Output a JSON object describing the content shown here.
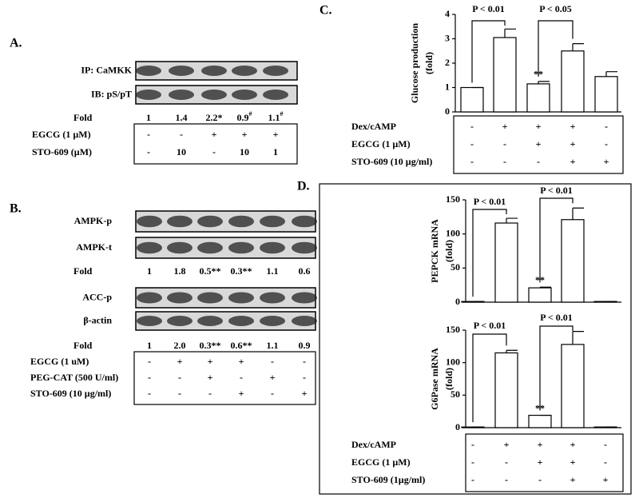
{
  "panel_a": {
    "label": "A.",
    "blots": [
      "IP: CaMKK",
      "IB: pS/pT"
    ],
    "fold_label": "Fold",
    "folds": [
      "1",
      "1.4",
      "2.2*",
      {
        "text": "0.9",
        "sup": "#"
      },
      {
        "text": "1.1",
        "sup": "#"
      }
    ],
    "treatments": [
      {
        "label": "EGCG (1 µM)",
        "marks": [
          "-",
          "-",
          "+",
          "+",
          "+"
        ]
      },
      {
        "label": "STO-609 (µM)",
        "marks": [
          "-",
          "10",
          "-",
          "10",
          "1"
        ]
      }
    ]
  },
  "panel_b": {
    "label": "B.",
    "groups": [
      {
        "blots": [
          "AMPK-p",
          "AMPK-t"
        ],
        "fold_label": "Fold",
        "folds": [
          "1",
          "1.8",
          "0.5**",
          "0.3**",
          "1.1",
          "0.6"
        ]
      },
      {
        "blots": [
          "ACC-p",
          "β-actin"
        ],
        "fold_label": "Fold",
        "folds": [
          "1",
          "2.0",
          "0.3**",
          "0.6**",
          "1.1",
          "0.9"
        ]
      }
    ],
    "treatments": [
      {
        "label": "EGCG (1 uM)",
        "marks": [
          "-",
          "+",
          "+",
          "+",
          "-",
          "-"
        ]
      },
      {
        "label": "PEG-CAT (500 U/ml)",
        "marks": [
          "-",
          "-",
          "+",
          "-",
          "+",
          "-"
        ]
      },
      {
        "label": "STO-609 (10 µg/ml)",
        "marks": [
          "-",
          "-",
          "-",
          "+",
          "-",
          "+"
        ]
      }
    ]
  },
  "panel_c": {
    "label": "C.",
    "treatments": [
      {
        "label": "Dex/cAMP",
        "marks": [
          "-",
          "+",
          "+",
          "+",
          "-"
        ]
      },
      {
        "label": "EGCG (1 µM)",
        "marks": [
          "-",
          "-",
          "+",
          "+",
          "-"
        ]
      },
      {
        "label": "STO-609 (10 µg/ml)",
        "marks": [
          "-",
          "-",
          "-",
          "+",
          "+"
        ]
      }
    ]
  },
  "panel_d": {
    "label": "D.",
    "treatments": [
      {
        "label": "Dex/cAMP",
        "marks": [
          "-",
          "+",
          "+",
          "+",
          "-"
        ]
      },
      {
        "label": "EGCG (1 µM)",
        "marks": [
          "-",
          "-",
          "+",
          "+",
          "-"
        ]
      },
      {
        "label": "STO-609 (1µg/ml)",
        "marks": [
          "-",
          "-",
          "-",
          "+",
          "+"
        ]
      }
    ]
  },
  "chart_data": [
    {
      "type": "bar",
      "y_label": [
        "Glucose production",
        "(fold)"
      ],
      "categories": [
        null,
        null,
        null,
        null,
        null
      ],
      "values": [
        1,
        3.05,
        1.15,
        2.5,
        1.45
      ],
      "errors": [
        0,
        0.35,
        0.1,
        0.3,
        0.2
      ],
      "color": "#ffffff",
      "ylim": [
        0,
        4
      ],
      "yticks": [
        0,
        1,
        2,
        3,
        4
      ],
      "star_label": "**",
      "annotations": [
        "P < 0.01",
        "P < 0.05"
      ]
    },
    {
      "type": "bar",
      "y_label": [
        "PEPCK mRNA",
        "(fold)"
      ],
      "categories": [
        null,
        null,
        null,
        null,
        null
      ],
      "values": [
        1,
        116,
        21,
        121,
        1
      ],
      "errors": [
        0,
        7,
        1,
        17,
        0
      ],
      "color": "#ffffff",
      "ylim": [
        0,
        150
      ],
      "yticks": [
        0,
        50,
        100,
        150
      ],
      "star_label": "**",
      "annotations": [
        "P < 0.01",
        "P < 0.01"
      ]
    },
    {
      "type": "bar",
      "y_label": [
        "G6Pase mRNA",
        "(fold)"
      ],
      "categories": [
        null,
        null,
        null,
        null,
        null
      ],
      "values": [
        1,
        115,
        19,
        128,
        1
      ],
      "errors": [
        0,
        4,
        0,
        20,
        0
      ],
      "color": "#ffffff",
      "ylim": [
        0,
        150
      ],
      "yticks": [
        0,
        50,
        100,
        150
      ],
      "star_label": "**",
      "annotations": [
        "P < 0.01",
        "P < 0.01"
      ]
    }
  ]
}
